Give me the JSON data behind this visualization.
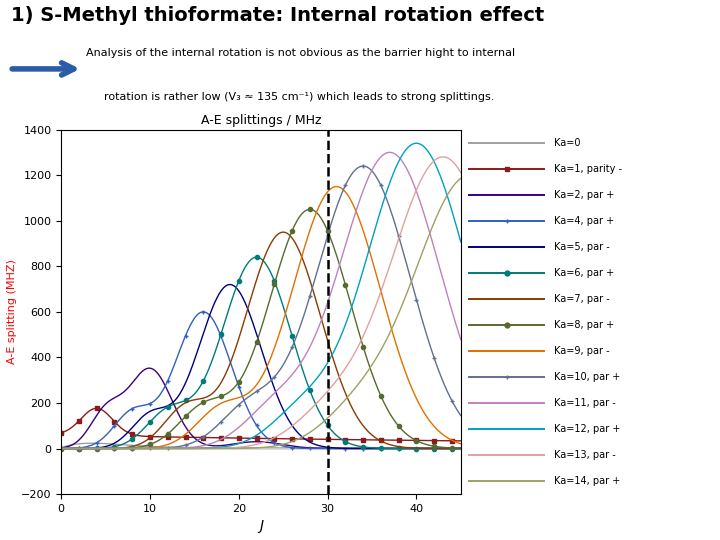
{
  "title": "1) S-Methyl thioformate: Internal rotation effect",
  "subtitle_line1": "Analysis of the internal rotation is not obvious as the barrier hight to internal",
  "subtitle_line2": "rotation is rather low (V₃ ≈ 135 cm⁻¹) which leads to strong splittings.",
  "chart_title": "A-E splittings / MHz",
  "xlabel": "J",
  "ylabel": "A-E splitting (MHZ)",
  "xlim": [
    0,
    45
  ],
  "ylim": [
    -200,
    1400
  ],
  "xticks": [
    0,
    10,
    20,
    30,
    40
  ],
  "yticks": [
    -200,
    0,
    200,
    400,
    600,
    800,
    1000,
    1200,
    1400
  ],
  "dashed_line_x": 30,
  "bg": "#ffffff",
  "series": [
    {
      "label": "Ka=0",
      "color": "#a0a0a0",
      "marker": "none",
      "lw": 1.0
    },
    {
      "label": "Ka=1, parity -",
      "color": "#8B1A1A",
      "marker": "s",
      "lw": 1.0
    },
    {
      "label": "Ka=2, par +",
      "color": "#3A0080",
      "marker": "none",
      "lw": 1.0
    },
    {
      "label": "Ka=4, par +",
      "color": "#3060C0",
      "marker": "+",
      "lw": 1.0
    },
    {
      "label": "Ka=5, par -",
      "color": "#000080",
      "marker": "none",
      "lw": 1.0
    },
    {
      "label": "Ka=6, par +",
      "color": "#007B7B",
      "marker": "o",
      "lw": 1.0
    },
    {
      "label": "Ka=7, par -",
      "color": "#8B3A00",
      "marker": "none",
      "lw": 1.0
    },
    {
      "label": "Ka=8, par +",
      "color": "#556B2F",
      "marker": "o",
      "lw": 1.0
    },
    {
      "label": "Ka=9, par -",
      "color": "#E07000",
      "marker": "none",
      "lw": 1.0
    },
    {
      "label": "Ka=10, par +",
      "color": "#607090",
      "marker": "+",
      "lw": 1.0
    },
    {
      "label": "Ka=11, par -",
      "color": "#C080C0",
      "marker": "none",
      "lw": 1.0
    },
    {
      "label": "Ka=12, par +",
      "color": "#00A0C0",
      "marker": "none",
      "lw": 1.0
    },
    {
      "label": "Ka=13, par -",
      "color": "#E0A0A0",
      "marker": "none",
      "lw": 1.0
    },
    {
      "label": "Ka=14, par +",
      "color": "#A0A060",
      "marker": "none",
      "lw": 1.0
    }
  ]
}
